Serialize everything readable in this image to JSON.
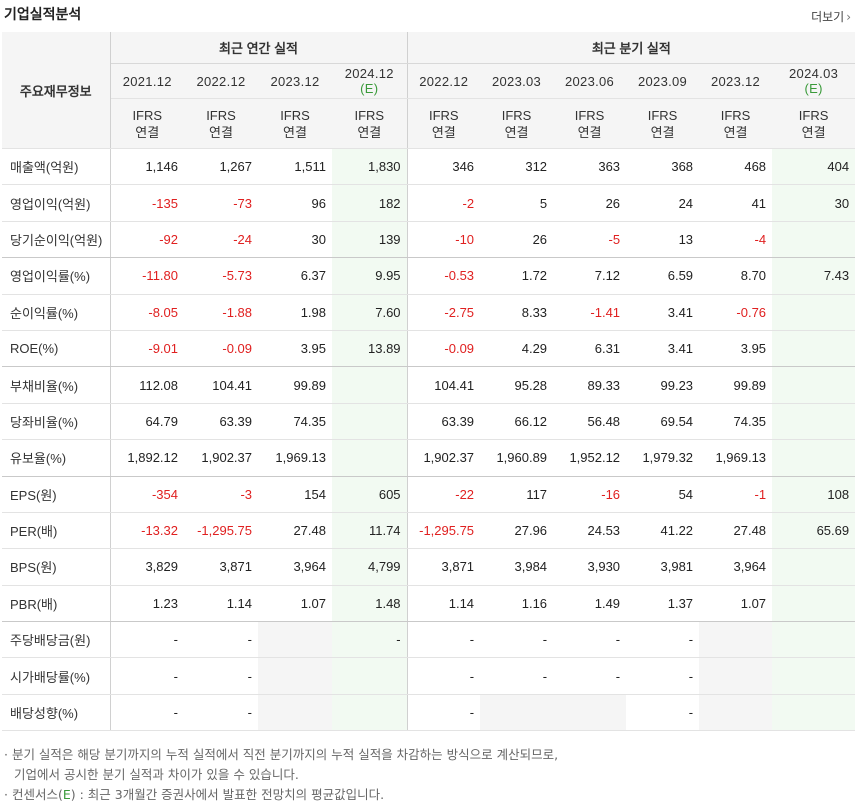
{
  "header": {
    "title": "기업실적분석",
    "more_label": "더보기",
    "more_arrow": "›"
  },
  "table": {
    "row_header": "주요재무정보",
    "group_annual": "최근 연간 실적",
    "group_quarter": "최근 분기 실적",
    "annual_periods": [
      {
        "label": "2021.12",
        "est": ""
      },
      {
        "label": "2022.12",
        "est": ""
      },
      {
        "label": "2023.12",
        "est": ""
      },
      {
        "label": "2024.12",
        "est": "(E)"
      }
    ],
    "quarter_periods": [
      {
        "label": "2022.12",
        "est": ""
      },
      {
        "label": "2023.03",
        "est": ""
      },
      {
        "label": "2023.06",
        "est": ""
      },
      {
        "label": "2023.09",
        "est": ""
      },
      {
        "label": "2023.12",
        "est": ""
      },
      {
        "label": "2024.03",
        "est": "(E)"
      }
    ],
    "standard_line1": "IFRS",
    "standard_line2": "연결",
    "rows": [
      {
        "label": "매출액(억원)",
        "values": [
          "1,146",
          "1,267",
          "1,511",
          "1,830",
          "346",
          "312",
          "363",
          "368",
          "468",
          "404"
        ]
      },
      {
        "label": "영업이익(억원)",
        "values": [
          "-135",
          "-73",
          "96",
          "182",
          "-2",
          "5",
          "26",
          "24",
          "41",
          "30"
        ]
      },
      {
        "label": "당기순이익(억원)",
        "values": [
          "-92",
          "-24",
          "30",
          "139",
          "-10",
          "26",
          "-5",
          "13",
          "-4",
          ""
        ]
      },
      {
        "label": "영업이익률(%)",
        "values": [
          "-11.80",
          "-5.73",
          "6.37",
          "9.95",
          "-0.53",
          "1.72",
          "7.12",
          "6.59",
          "8.70",
          "7.43"
        ]
      },
      {
        "label": "순이익률(%)",
        "values": [
          "-8.05",
          "-1.88",
          "1.98",
          "7.60",
          "-2.75",
          "8.33",
          "-1.41",
          "3.41",
          "-0.76",
          ""
        ]
      },
      {
        "label": "ROE(%)",
        "values": [
          "-9.01",
          "-0.09",
          "3.95",
          "13.89",
          "-0.09",
          "4.29",
          "6.31",
          "3.41",
          "3.95",
          ""
        ]
      },
      {
        "label": "부채비율(%)",
        "values": [
          "112.08",
          "104.41",
          "99.89",
          "",
          "104.41",
          "95.28",
          "89.33",
          "99.23",
          "99.89",
          ""
        ]
      },
      {
        "label": "당좌비율(%)",
        "values": [
          "64.79",
          "63.39",
          "74.35",
          "",
          "63.39",
          "66.12",
          "56.48",
          "69.54",
          "74.35",
          ""
        ]
      },
      {
        "label": "유보율(%)",
        "values": [
          "1,892.12",
          "1,902.37",
          "1,969.13",
          "",
          "1,902.37",
          "1,960.89",
          "1,952.12",
          "1,979.32",
          "1,969.13",
          ""
        ]
      },
      {
        "label": "EPS(원)",
        "values": [
          "-354",
          "-3",
          "154",
          "605",
          "-22",
          "117",
          "-16",
          "54",
          "-1",
          "108"
        ]
      },
      {
        "label": "PER(배)",
        "values": [
          "-13.32",
          "-1,295.75",
          "27.48",
          "11.74",
          "-1,295.75",
          "27.96",
          "24.53",
          "41.22",
          "27.48",
          "65.69"
        ]
      },
      {
        "label": "BPS(원)",
        "values": [
          "3,829",
          "3,871",
          "3,964",
          "4,799",
          "3,871",
          "3,984",
          "3,930",
          "3,981",
          "3,964",
          ""
        ]
      },
      {
        "label": "PBR(배)",
        "values": [
          "1.23",
          "1.14",
          "1.07",
          "1.48",
          "1.14",
          "1.16",
          "1.49",
          "1.37",
          "1.07",
          ""
        ]
      },
      {
        "label": "주당배당금(원)",
        "values": [
          "-",
          "-",
          "",
          "-",
          "-",
          "-",
          "-",
          "-",
          "",
          ""
        ]
      },
      {
        "label": "시가배당률(%)",
        "values": [
          "-",
          "-",
          "",
          "",
          "-",
          "-",
          "-",
          "-",
          "",
          ""
        ]
      },
      {
        "label": "배당성향(%)",
        "values": [
          "-",
          "-",
          "",
          "",
          "-",
          "",
          "",
          "-",
          "",
          ""
        ]
      }
    ]
  },
  "notes": {
    "line1": "· 분기 실적은 해당 분기까지의 누적 실적에서 직전 분기까지의 누적 실적을 차감하는 방식으로 계산되므로,",
    "line2": "기업에서 공시한 분기 실적과 차이가 있을 수 있습니다.",
    "line3_prefix": "· 컨센서스(",
    "line3_e": "E",
    "line3_suffix": ") : 최근 3개월간 증권사에서 발표한 전망치의 평균값입니다."
  }
}
